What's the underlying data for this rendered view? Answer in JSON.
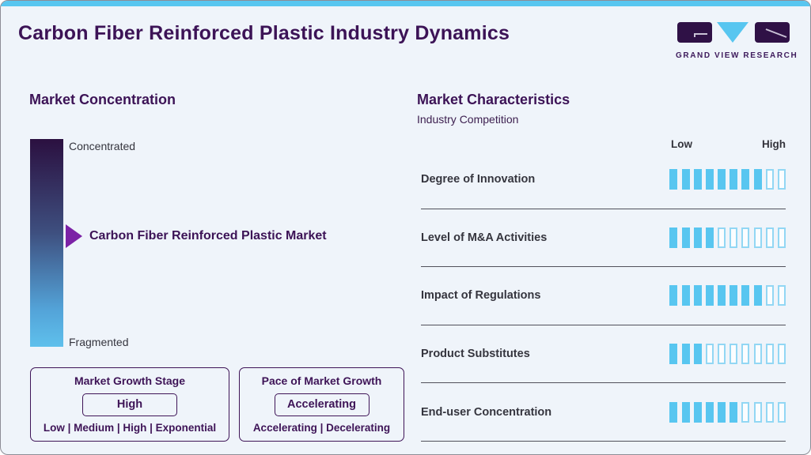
{
  "theme": {
    "accent_blue": "#58c6f0",
    "brand_purple": "#3c1356",
    "arrow_purple": "#7c22a6",
    "gradient_top": "#2b1040",
    "gradient_bottom": "#5fc0ec"
  },
  "header": {
    "title": "Carbon Fiber Reinforced Plastic Industry Dynamics"
  },
  "logo": {
    "text": "GRAND VIEW RESEARCH"
  },
  "market_concentration": {
    "heading": "Market Concentration",
    "scale_top_label": "Concentrated",
    "scale_bottom_label": "Fragmented",
    "marker_label": "Carbon Fiber Reinforced Plastic Market"
  },
  "growth_stage_box": {
    "title": "Market Growth Stage",
    "selected": "High",
    "options_line": "Low | Medium | High | Exponential"
  },
  "pace_box": {
    "title": "Pace of Market Growth",
    "selected": "Accelerating",
    "options_line": "Accelerating | Decelerating"
  },
  "market_characteristics": {
    "heading": "Market Characteristics",
    "subheading": "Industry Competition",
    "scale_low_label": "Low",
    "scale_high_label": "High",
    "scale_max": 10,
    "rows": [
      {
        "label": "Degree of Innovation",
        "value": 8
      },
      {
        "label": "Level of M&A Activities",
        "value": 4
      },
      {
        "label": "Impact of Regulations",
        "value": 8
      },
      {
        "label": "Product Substitutes",
        "value": 3
      },
      {
        "label": "End-user Concentration",
        "value": 6
      }
    ]
  },
  "chart_data": {
    "type": "bar",
    "title": "Carbon Fiber Reinforced Plastic Industry Dynamics — Industry Competition",
    "categories": [
      "Degree of Innovation",
      "Level of M&A Activities",
      "Impact of Regulations",
      "Product Substitutes",
      "End-user Concentration"
    ],
    "values": [
      8,
      4,
      8,
      3,
      6
    ],
    "xlabel": "",
    "ylabel": "Rating (Low to High)",
    "ylim": [
      0,
      10
    ],
    "annotations": {
      "market_concentration_marker": "Carbon Fiber Reinforced Plastic Market (mid-scale between Concentrated and Fragmented)",
      "market_growth_stage": "High",
      "pace_of_market_growth": "Accelerating"
    }
  }
}
